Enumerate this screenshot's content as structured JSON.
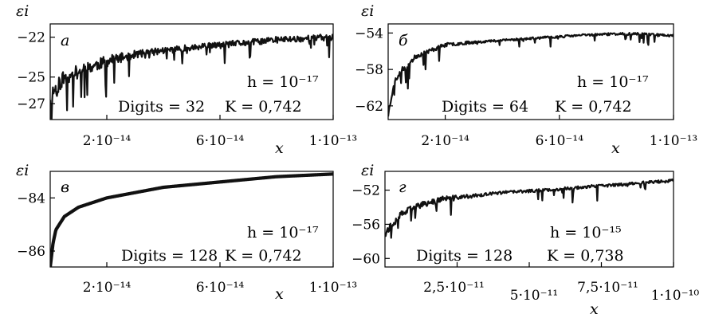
{
  "chart_data": [
    {
      "panel": "а",
      "type": "line",
      "title": "",
      "xlabel": "x",
      "ylabel": "εi",
      "xlim": [
        0,
        1e-13
      ],
      "ylim": [
        -28.2,
        -21.0
      ],
      "x_ticks": [
        2e-14,
        6e-14,
        1e-13
      ],
      "x_tick_labels": [
        "2·10⁻¹⁴",
        "6·10⁻¹⁴",
        "1·10⁻¹³"
      ],
      "y_ticks": [
        -22,
        -25,
        -27
      ],
      "y_tick_labels": [
        "−22",
        "−25",
        "−27"
      ],
      "annotation_h": "h = 10⁻¹⁷",
      "annotation_digits": "Digits = 32",
      "annotation_K": "K = 0,742",
      "series": [
        {
          "x": [
            0.0,
            5e-15,
            1e-14,
            2e-14,
            3e-14,
            4e-14,
            5e-14,
            6e-14,
            7e-14,
            8e-14,
            9e-14,
            1e-13
          ],
          "values": [
            -26.4,
            -25.0,
            -24.6,
            -23.8,
            -23.3,
            -23.0,
            -22.8,
            -22.6,
            -22.4,
            -22.2,
            -22.1,
            -22.0
          ]
        }
      ],
      "noise": 0.5,
      "dips": 0.12,
      "dip_depth": 3.5,
      "seed": 11
    },
    {
      "panel": "б",
      "type": "line",
      "title": "",
      "xlabel": "x",
      "ylabel": "εi",
      "xlim": [
        0,
        1e-13
      ],
      "ylim": [
        -63.5,
        -53.0
      ],
      "x_ticks": [
        2e-14,
        6e-14,
        1e-13
      ],
      "x_tick_labels": [
        "2·10⁻¹⁴",
        "6·10⁻¹⁴",
        "1·10⁻¹³"
      ],
      "y_ticks": [
        -54,
        -58,
        -62
      ],
      "y_tick_labels": [
        "−54",
        "−58",
        "−62"
      ],
      "annotation_h": "h = 10⁻¹⁷",
      "annotation_digits": "Digits = 64",
      "annotation_K": "K = 0,742",
      "series": [
        {
          "x": [
            0.0,
            2e-15,
            5e-15,
            1e-14,
            2e-14,
            3e-14,
            4e-14,
            5e-14,
            6e-14,
            7e-14,
            8e-14,
            9e-14,
            1e-13
          ],
          "values": [
            -63.0,
            -59.5,
            -58.0,
            -56.5,
            -55.3,
            -55.0,
            -54.8,
            -54.6,
            -54.4,
            -54.2,
            -54.1,
            -54.1,
            -54.3
          ]
        }
      ],
      "noise": 0.25,
      "dips": 0.05,
      "dip_depth": 3.0,
      "seed": 23
    },
    {
      "panel": "в",
      "type": "line",
      "title": "",
      "xlabel": "x",
      "ylabel": "εi",
      "xlim": [
        0,
        1e-13
      ],
      "ylim": [
        -86.6,
        -83.0
      ],
      "x_ticks": [
        2e-14,
        6e-14,
        1e-13
      ],
      "x_tick_labels": [
        "2·10⁻¹⁴",
        "6·10⁻¹⁴",
        "1·10⁻¹³"
      ],
      "y_ticks": [
        -84,
        -86
      ],
      "y_tick_labels": [
        "−84",
        "−86"
      ],
      "annotation_h": "h = 10⁻¹⁷",
      "annotation_digits": "Digits = 128",
      "annotation_K": "K = 0,742",
      "series": [
        {
          "x": [
            0.0,
            1e-15,
            2e-15,
            5e-15,
            1e-14,
            2e-14,
            3e-14,
            4e-14,
            5e-14,
            6e-14,
            7e-14,
            8e-14,
            9e-14,
            1e-13
          ],
          "values": [
            -86.6,
            -85.7,
            -85.2,
            -84.7,
            -84.35,
            -84.0,
            -83.8,
            -83.6,
            -83.5,
            -83.4,
            -83.3,
            -83.2,
            -83.15,
            -83.1
          ]
        }
      ],
      "noise": 0.0,
      "dips": 0.0,
      "dip_depth": 0.0,
      "seed": 5
    },
    {
      "panel": "г",
      "type": "line",
      "title": "",
      "xlabel": "x",
      "ylabel": "εi",
      "xlim": [
        0,
        1e-10
      ],
      "ylim": [
        -61.0,
        -49.8
      ],
      "x_ticks": [
        2.5e-11,
        5e-11,
        7.5e-11,
        1e-10
      ],
      "x_tick_labels": [
        "2,5·10⁻¹¹",
        "5·10⁻¹¹",
        "7,5·10⁻¹¹",
        "1·10⁻¹⁰"
      ],
      "y_ticks": [
        -52,
        -56,
        -60
      ],
      "y_tick_labels": [
        "−52",
        "−56",
        "−60"
      ],
      "annotation_h": "h = 10⁻¹⁵",
      "annotation_digits": "Digits = 128",
      "annotation_K": "K = 0,738",
      "series": [
        {
          "x": [
            0.0,
            5e-12,
            1e-11,
            2e-11,
            3e-11,
            4e-11,
            5e-11,
            6e-11,
            7e-11,
            8e-11,
            9e-11,
            1e-10
          ],
          "values": [
            -57.0,
            -55.0,
            -54.0,
            -53.0,
            -52.7,
            -52.3,
            -52.1,
            -51.9,
            -51.6,
            -51.4,
            -51.1,
            -50.9
          ]
        }
      ],
      "noise": 0.35,
      "dips": 0.07,
      "dip_depth": 4.0,
      "seed": 37
    }
  ]
}
